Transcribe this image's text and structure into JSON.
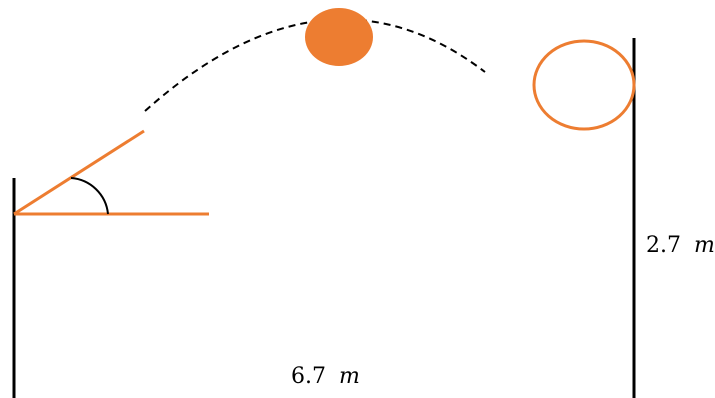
{
  "labels": {
    "distance_value": "6.7",
    "distance_unit": "m",
    "height_value": "2.7",
    "height_unit": "m"
  },
  "colors": {
    "line": "#000000",
    "accent": "#ED7D31",
    "ball_fill": "#ED7D31"
  }
}
